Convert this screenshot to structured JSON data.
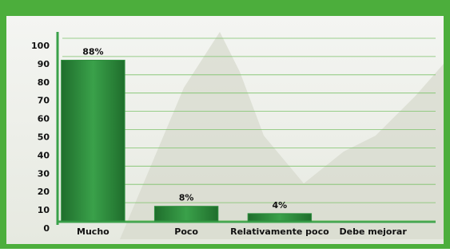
{
  "chart_data": {
    "type": "bar",
    "categories": [
      "Mucho",
      "Poco",
      "Relativamente poco",
      "Debe mejorar"
    ],
    "values": [
      88,
      8,
      4,
      0
    ],
    "value_labels": [
      "88%",
      "8%",
      "4%",
      null
    ],
    "color": "#2f8f3f",
    "ylim": [
      0,
      100
    ],
    "yticks": [
      0,
      10,
      20,
      30,
      40,
      50,
      60,
      70,
      80,
      90,
      100
    ],
    "grid": true
  }
}
